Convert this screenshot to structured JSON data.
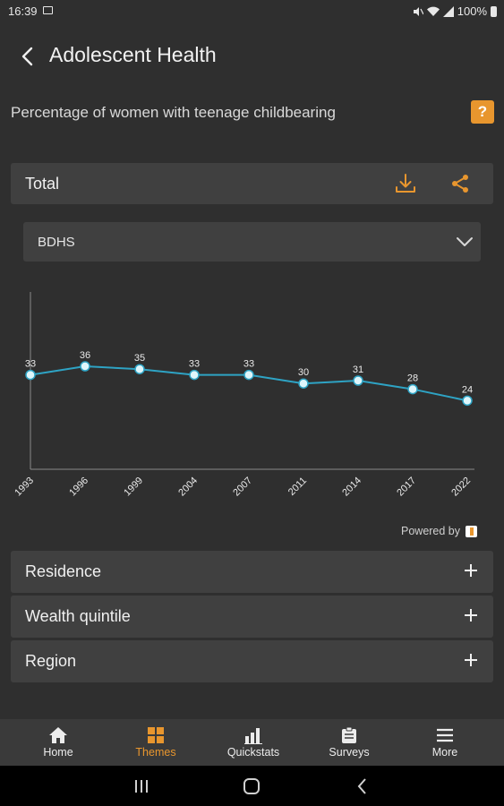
{
  "status_bar": {
    "time": "16:39",
    "battery": "100%"
  },
  "header": {
    "title": "Adolescent Health"
  },
  "indicator": {
    "title": "Percentage of women with teenage childbearing",
    "help_label": "?"
  },
  "total_bar": {
    "label": "Total"
  },
  "survey_select": {
    "selected": "BDHS"
  },
  "chart_data": {
    "type": "line",
    "x": [
      "1993",
      "1996",
      "1999",
      "2004",
      "2007",
      "2011",
      "2014",
      "2017",
      "2022"
    ],
    "values": [
      33,
      36,
      35,
      33,
      33,
      30,
      31,
      28,
      24
    ],
    "series_color": "#2ea3c4",
    "point_color": "#dff6fb",
    "grid": false,
    "legend": "none"
  },
  "powered_by": "Powered by",
  "accordions": [
    {
      "label": "Residence"
    },
    {
      "label": "Wealth quintile"
    },
    {
      "label": "Region"
    }
  ],
  "bottom_nav": [
    {
      "label": "Home",
      "icon": "home-icon"
    },
    {
      "label": "Themes",
      "icon": "grid-icon",
      "active": true
    },
    {
      "label": "Quickstats",
      "icon": "bar-chart-icon"
    },
    {
      "label": "Surveys",
      "icon": "clipboard-icon"
    },
    {
      "label": "More",
      "icon": "menu-icon"
    }
  ],
  "colors": {
    "accent": "#e8962e",
    "background": "#2f2f2f",
    "panel": "#404040"
  }
}
